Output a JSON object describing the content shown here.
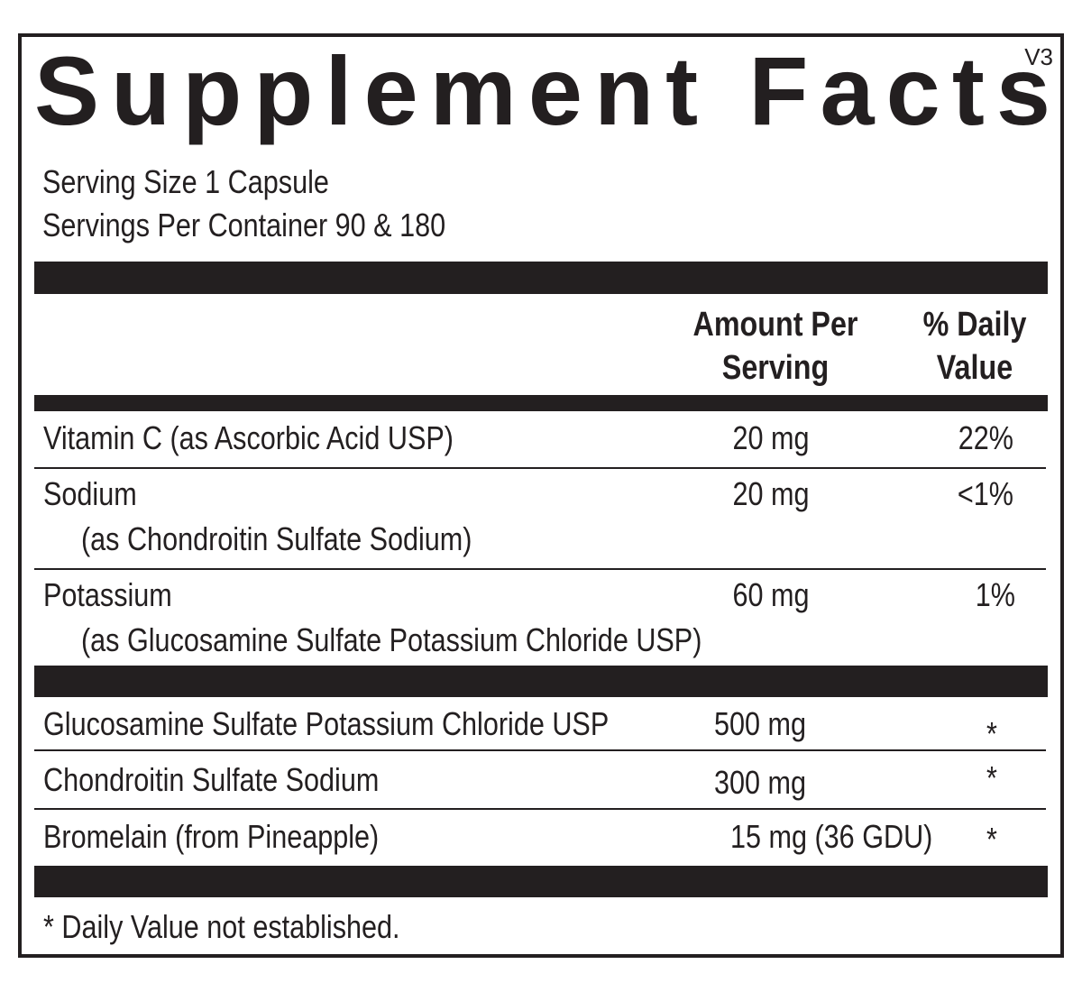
{
  "title": "Supplement Facts",
  "version": "V3",
  "serving_size": "Serving Size 1 Capsule",
  "servings_per_container": "Servings Per Container 90  & 180",
  "header": {
    "amount": [
      "Amount Per",
      "Serving"
    ],
    "daily_value": [
      "% Daily",
      "Value"
    ]
  },
  "rows": [
    {
      "name": "Vitamin C (as Ascorbic Acid USP)",
      "amount": "20 mg",
      "daily_value": "22%"
    },
    {
      "name": "Sodium",
      "source": "(as Chondroitin Sulfate Sodium)",
      "amount": "20 mg",
      "daily_value": "<1%"
    },
    {
      "name": "Potassium",
      "source": "(as Glucosamine Sulfate Potassium Chloride USP)",
      "amount": "60 mg",
      "daily_value": "1%"
    },
    {
      "name": "Glucosamine Sulfate Potassium Chloride USP",
      "amount": "500 mg",
      "daily_value": "*"
    },
    {
      "name": "Chondroitin Sulfate Sodium",
      "amount": "300 mg",
      "daily_value": "*"
    },
    {
      "name": "Bromelain (from Pineapple)",
      "amount": "15 mg (36 GDU)",
      "daily_value": "*"
    }
  ],
  "footnote": "* Daily Value not established."
}
